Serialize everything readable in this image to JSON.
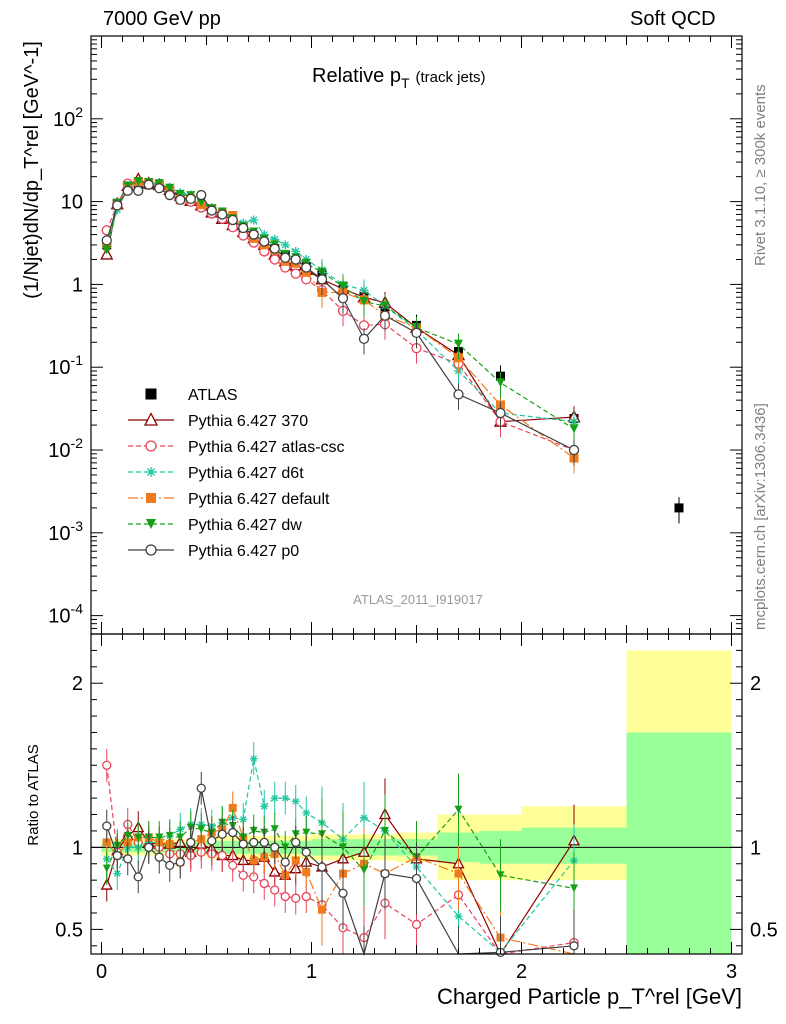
{
  "header": {
    "left": "7000 GeV pp",
    "right": "Soft QCD"
  },
  "side_labels": {
    "rivet": "Rivet 3.1.10, ≥ 300k events",
    "mcplots": "mcplots.cern.ch [arXiv:1306.3436]"
  },
  "chart_data": [
    {
      "type": "line",
      "panel": "main",
      "title": "Relative pT (track jets)",
      "title_main": "Relative p",
      "title_sub": "T",
      "title_suffix": "(track jets)",
      "ylabel": "(1/Njet)dN/dp_T^rel [GeV^-1]",
      "yscale": "log",
      "ylim": [
        6e-05,
        1000
      ],
      "xlim": [
        -0.05,
        3.05
      ],
      "y_ticks": [
        "10^-4",
        "10^-3",
        "10^-2",
        "10^-1",
        "1",
        "10",
        "10^2"
      ],
      "analysis_tag": "ATLAS_2011_I919017",
      "legend_position": "center-left",
      "x": [
        0.025,
        0.075,
        0.125,
        0.175,
        0.225,
        0.275,
        0.325,
        0.375,
        0.425,
        0.475,
        0.525,
        0.575,
        0.625,
        0.675,
        0.725,
        0.775,
        0.825,
        0.875,
        0.925,
        0.975,
        1.05,
        1.15,
        1.25,
        1.35,
        1.5,
        1.7,
        1.9,
        2.25,
        2.75
      ],
      "series": [
        {
          "name": "ATLAS",
          "color": "#000000",
          "marker": "square-filled",
          "values": [
            3.0,
            9.5,
            14.5,
            16.5,
            16.0,
            15.5,
            13.5,
            11.5,
            10.5,
            8.8,
            7.5,
            6.5,
            5.5,
            4.7,
            3.9,
            3.2,
            2.7,
            2.3,
            1.95,
            1.65,
            1.3,
            0.95,
            0.72,
            0.5,
            0.32,
            0.155,
            0.078,
            0.024,
            0.002
          ]
        },
        {
          "name": "Pythia 6.427 370",
          "color": "#8b0000",
          "marker": "triangle-open",
          "dash": "",
          "values": [
            2.3,
            9.3,
            15.5,
            18.5,
            16.5,
            15.8,
            13.8,
            11.8,
            10.2,
            9.0,
            7.4,
            6.2,
            5.2,
            4.3,
            3.6,
            3.0,
            2.3,
            1.9,
            1.7,
            1.5,
            1.15,
            0.88,
            0.7,
            0.6,
            0.3,
            0.14,
            0.022,
            0.025,
            null
          ]
        },
        {
          "name": "Pythia 6.427 atlas-csc",
          "color": "#e8435a",
          "marker": "circle-open",
          "dash": "5,3",
          "values": [
            4.5,
            9.2,
            16.5,
            17.0,
            16.0,
            15.5,
            13.0,
            11.0,
            10.0,
            8.5,
            7.2,
            6.2,
            4.9,
            3.9,
            3.2,
            2.5,
            2.0,
            1.6,
            1.35,
            1.15,
            0.85,
            0.48,
            0.32,
            0.33,
            0.17,
            0.11,
            0.022,
            0.01,
            null
          ]
        },
        {
          "name": "Pythia 6.427 d6t",
          "color": "#21c6a3",
          "marker": "star",
          "dash": "5,3",
          "values": [
            2.8,
            8.0,
            14.5,
            16.5,
            16.5,
            16.0,
            14.5,
            12.8,
            12.0,
            10.0,
            8.5,
            7.5,
            6.5,
            5.5,
            6.0,
            4.0,
            3.5,
            3.0,
            2.5,
            2.0,
            1.5,
            1.0,
            0.85,
            0.55,
            0.28,
            0.09,
            0.028,
            0.022,
            null
          ]
        },
        {
          "name": "Pythia 6.427 default",
          "color": "#f07b1f",
          "marker": "square-filled",
          "dash": "10,3,2,3",
          "values": [
            3.1,
            9.0,
            15.0,
            17.5,
            17.0,
            16.0,
            13.8,
            10.5,
            10.8,
            9.2,
            8.2,
            7.2,
            6.8,
            5.0,
            3.6,
            3.0,
            2.6,
            1.9,
            1.8,
            1.4,
            0.8,
            0.8,
            0.65,
            0.42,
            0.3,
            0.13,
            0.035,
            0.008,
            null
          ]
        },
        {
          "name": "Pythia 6.427 dw",
          "color": "#16a016",
          "marker": "triangle-down-filled",
          "dash": "5,3",
          "values": [
            2.6,
            9.6,
            15.5,
            17.5,
            17.0,
            16.5,
            14.5,
            12.2,
            11.8,
            9.8,
            8.2,
            7.5,
            6.2,
            5.0,
            4.3,
            3.5,
            3.0,
            2.3,
            2.1,
            1.8,
            1.4,
            0.95,
            0.62,
            0.55,
            0.3,
            0.19,
            0.065,
            0.018,
            null
          ]
        },
        {
          "name": "Pythia 6.427 p0",
          "color": "#404040",
          "marker": "circle-open",
          "dash": "",
          "values": [
            3.4,
            9.0,
            13.5,
            13.5,
            16.0,
            14.5,
            12.0,
            10.5,
            10.8,
            12.0,
            7.8,
            7.0,
            6.0,
            4.8,
            4.0,
            3.3,
            2.7,
            2.1,
            2.0,
            1.6,
            1.15,
            0.68,
            0.22,
            0.42,
            0.26,
            0.047,
            0.028,
            0.01,
            null
          ]
        }
      ]
    },
    {
      "type": "line",
      "panel": "ratio",
      "xlabel": "Charged Particle p_T^rel [GeV]",
      "ylabel": "Ratio to ATLAS",
      "ylim": [
        0.35,
        2.3
      ],
      "xlim": [
        -0.05,
        3.05
      ],
      "y_ticks": [
        "0.5",
        "1",
        "2"
      ],
      "x_ticks": [
        "0",
        "1",
        "2",
        "3"
      ],
      "band_bins": [
        {
          "x0": 0.0,
          "x1": 0.5,
          "yellow": [
            0.95,
            1.05
          ],
          "green": [
            0.97,
            1.03
          ]
        },
        {
          "x0": 0.5,
          "x1": 1.0,
          "yellow": [
            0.93,
            1.07
          ],
          "green": [
            0.96,
            1.04
          ]
        },
        {
          "x0": 1.0,
          "x1": 1.4,
          "yellow": [
            0.92,
            1.08
          ],
          "green": [
            0.95,
            1.05
          ]
        },
        {
          "x0": 1.4,
          "x1": 1.6,
          "yellow": [
            0.91,
            1.09
          ],
          "green": [
            0.95,
            1.05
          ]
        },
        {
          "x0": 1.6,
          "x1": 1.8,
          "yellow": [
            0.8,
            1.2
          ],
          "green": [
            0.91,
            1.09
          ]
        },
        {
          "x0": 1.8,
          "x1": 2.0,
          "yellow": [
            0.8,
            1.2
          ],
          "green": [
            0.9,
            1.1
          ]
        },
        {
          "x0": 2.0,
          "x1": 2.5,
          "yellow": [
            0.8,
            1.25
          ],
          "green": [
            0.9,
            1.12
          ]
        },
        {
          "x0": 2.5,
          "x1": 3.0,
          "yellow": [
            0.33,
            2.2
          ],
          "green": [
            0.33,
            1.7
          ]
        }
      ],
      "series": [
        {
          "name": "Pythia 6.427 370",
          "color": "#8b0000",
          "dash": "",
          "values": [
            0.77,
            0.98,
            1.07,
            1.12,
            1.03,
            1.02,
            1.02,
            1.03,
            0.97,
            1.02,
            0.99,
            0.95,
            0.95,
            0.92,
            0.92,
            0.94,
            0.85,
            0.83,
            0.87,
            0.91,
            0.88,
            0.93,
            0.97,
            1.2,
            0.93,
            0.9,
            0.28,
            1.04,
            null
          ]
        },
        {
          "name": "Pythia 6.427 atlas-csc",
          "color": "#e8435a",
          "dash": "5,3",
          "values": [
            1.5,
            0.97,
            1.14,
            1.03,
            1.0,
            1.0,
            0.96,
            0.96,
            0.95,
            0.97,
            0.96,
            0.95,
            0.89,
            0.83,
            0.82,
            0.78,
            0.74,
            0.7,
            0.69,
            0.7,
            0.65,
            0.51,
            0.45,
            0.66,
            0.53,
            0.71,
            0.28,
            0.42,
            null
          ]
        },
        {
          "name": "Pythia 6.427 d6t",
          "color": "#21c6a3",
          "dash": "5,3",
          "values": [
            0.93,
            0.84,
            1.0,
            1.0,
            1.03,
            1.03,
            1.07,
            1.11,
            1.14,
            1.14,
            1.13,
            1.15,
            1.18,
            1.17,
            1.54,
            1.25,
            1.3,
            1.3,
            1.28,
            1.21,
            1.15,
            1.05,
            1.18,
            1.1,
            0.88,
            0.58,
            0.36,
            0.92,
            null
          ]
        },
        {
          "name": "Pythia 6.427 default",
          "color": "#f07b1f",
          "dash": "10,3,2,3",
          "values": [
            1.03,
            0.95,
            1.03,
            1.06,
            1.06,
            1.03,
            1.02,
            0.91,
            1.03,
            1.05,
            1.09,
            1.11,
            1.24,
            1.06,
            0.92,
            0.94,
            0.96,
            0.83,
            0.92,
            0.85,
            0.62,
            0.84,
            0.9,
            0.84,
            0.94,
            0.84,
            0.45,
            0.33,
            null
          ]
        },
        {
          "name": "Pythia 6.427 dw",
          "color": "#16a016",
          "dash": "5,3",
          "values": [
            0.87,
            1.01,
            1.07,
            1.06,
            1.06,
            1.06,
            1.07,
            1.06,
            1.12,
            1.11,
            1.09,
            1.15,
            1.13,
            1.06,
            1.1,
            1.09,
            1.11,
            1.0,
            1.08,
            1.09,
            1.08,
            1.0,
            0.86,
            1.1,
            0.94,
            1.23,
            0.83,
            0.75,
            null
          ]
        },
        {
          "name": "Pythia 6.427 p0",
          "color": "#404040",
          "dash": "",
          "values": [
            1.13,
            0.95,
            0.93,
            0.82,
            1.0,
            0.94,
            0.89,
            0.91,
            1.03,
            1.36,
            1.04,
            1.08,
            1.09,
            1.02,
            1.03,
            1.03,
            1.0,
            0.91,
            1.03,
            0.97,
            0.88,
            0.72,
            0.3,
            0.84,
            0.81,
            0.3,
            0.36,
            0.4,
            null
          ]
        }
      ]
    }
  ]
}
